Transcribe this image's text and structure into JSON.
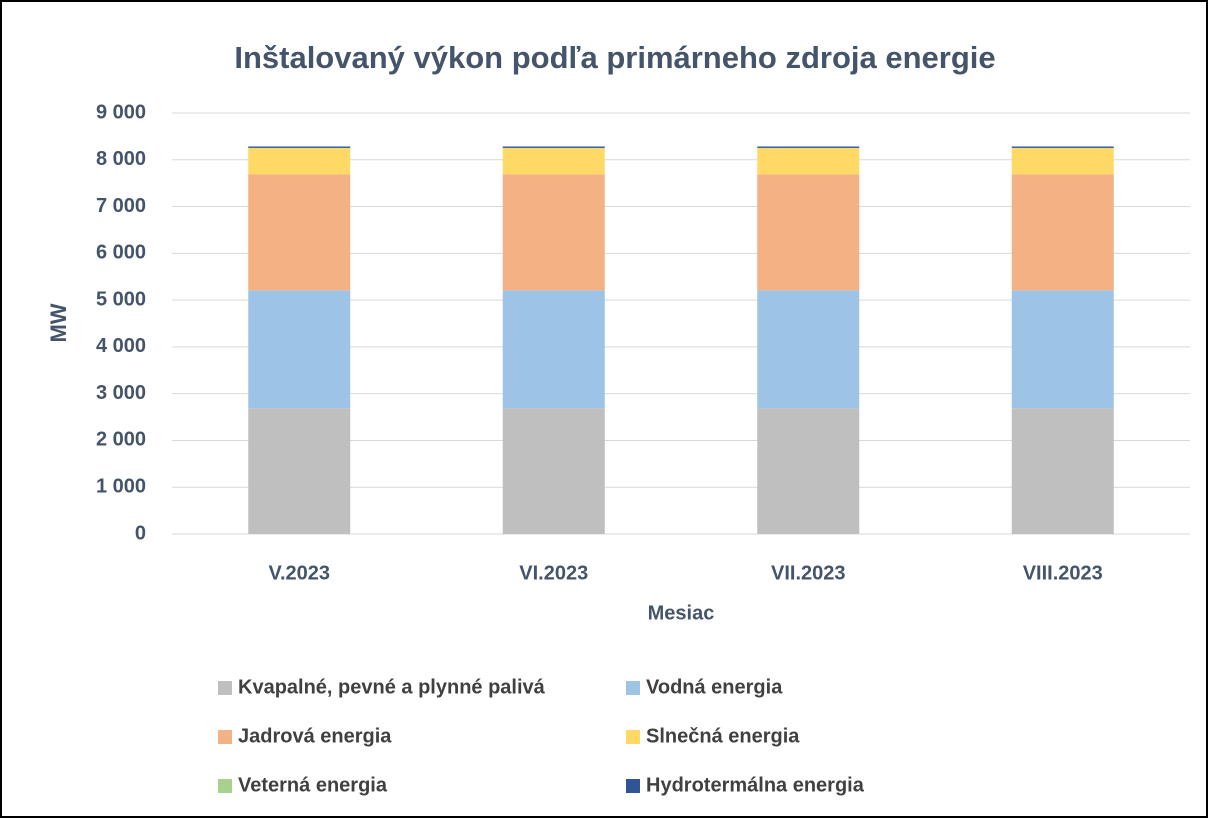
{
  "chart_data": {
    "type": "stacked_bar",
    "title": "Inštalovaný výkon podľa primárneho zdroja energie",
    "x_label": "Mesiac",
    "y_label": "MW",
    "categories": [
      "V.2023",
      "VI.2023",
      "VII.2023",
      "VIII.2023"
    ],
    "series": [
      {
        "name": "Kvapalné, pevné a plynné palivá",
        "color": "#bfbfbf",
        "values": [
          2690,
          2690,
          2690,
          2690
        ]
      },
      {
        "name": "Vodná energia",
        "color": "#9dc3e6",
        "values": [
          2520,
          2520,
          2520,
          2520
        ]
      },
      {
        "name": "Jadrová energia",
        "color": "#f4b183",
        "values": [
          2480,
          2480,
          2480,
          2480
        ]
      },
      {
        "name": "Slnečná energia",
        "color": "#ffd966",
        "values": [
          560,
          560,
          560,
          560
        ]
      },
      {
        "name": "Veterná energia",
        "color": "#a9d18e",
        "values": [
          4,
          4,
          4,
          4
        ]
      },
      {
        "name": "Hydrotermálna energia",
        "color": "#2f5597",
        "values": [
          30,
          30,
          30,
          30
        ]
      }
    ],
    "ylim": [
      0,
      9000
    ],
    "yticks": [
      0,
      {
        "value": 1000,
        "label": "1 000"
      },
      {
        "value": 2000,
        "label": "2 000"
      },
      {
        "value": 3000,
        "label": "3 000"
      },
      {
        "value": 4000,
        "label": "4 000"
      },
      {
        "value": 5000,
        "label": "5 000"
      },
      {
        "value": 6000,
        "label": "6 000"
      },
      {
        "value": 7000,
        "label": "7 000"
      },
      {
        "value": 8000,
        "label": "8 000"
      },
      {
        "value": 9000,
        "label": "9 000"
      }
    ],
    "grid": true,
    "legend": "bottom"
  }
}
